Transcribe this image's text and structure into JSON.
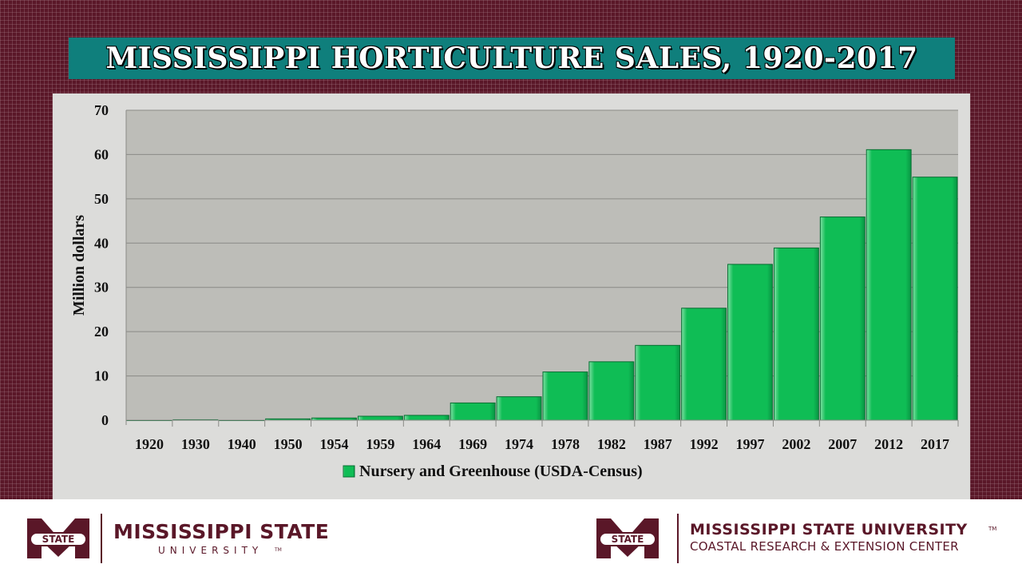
{
  "colors": {
    "frame": "#5a1728",
    "title_bg": "#0f7f7c",
    "plot_bg": "#bdbdb8",
    "bar": "#0fbd55"
  },
  "title": "MISSISSIPPI HORTICULTURE SALES, 1920-2017",
  "chart_data": {
    "type": "bar",
    "ylabel": "Million dollars",
    "xlabel": "",
    "ylim": [
      0,
      70
    ],
    "yticks": [
      0,
      10,
      20,
      30,
      40,
      50,
      60,
      70
    ],
    "grid": true,
    "legend": "bottom-center",
    "categories": [
      "1920",
      "1930",
      "1940",
      "1950",
      "1954",
      "1959",
      "1964",
      "1969",
      "1974",
      "1978",
      "1982",
      "1987",
      "1992",
      "1997",
      "2002",
      "2007",
      "2012",
      "2017"
    ],
    "series": [
      {
        "name": "Nursery and Greenhouse (USDA-Census)",
        "values": [
          0,
          0.1,
          0,
          0.3,
          0.5,
          0.9,
          1.1,
          3.9,
          5.3,
          10.9,
          13.2,
          16.9,
          25.3,
          35.2,
          38.9,
          45.9,
          61.1,
          54.9
        ]
      }
    ]
  },
  "footer": {
    "left_logo": {
      "badge_icon": "msu-m-state-logo",
      "name": "MISSISSIPPI STATE",
      "sub": "UNIVERSITY",
      "tm": "TM"
    },
    "right_logo": {
      "badge_icon": "msu-m-state-logo",
      "name": "MISSISSIPPI STATE UNIVERSITY",
      "tm": "TM",
      "sub": "COASTAL RESEARCH & EXTENSION CENTER"
    }
  }
}
